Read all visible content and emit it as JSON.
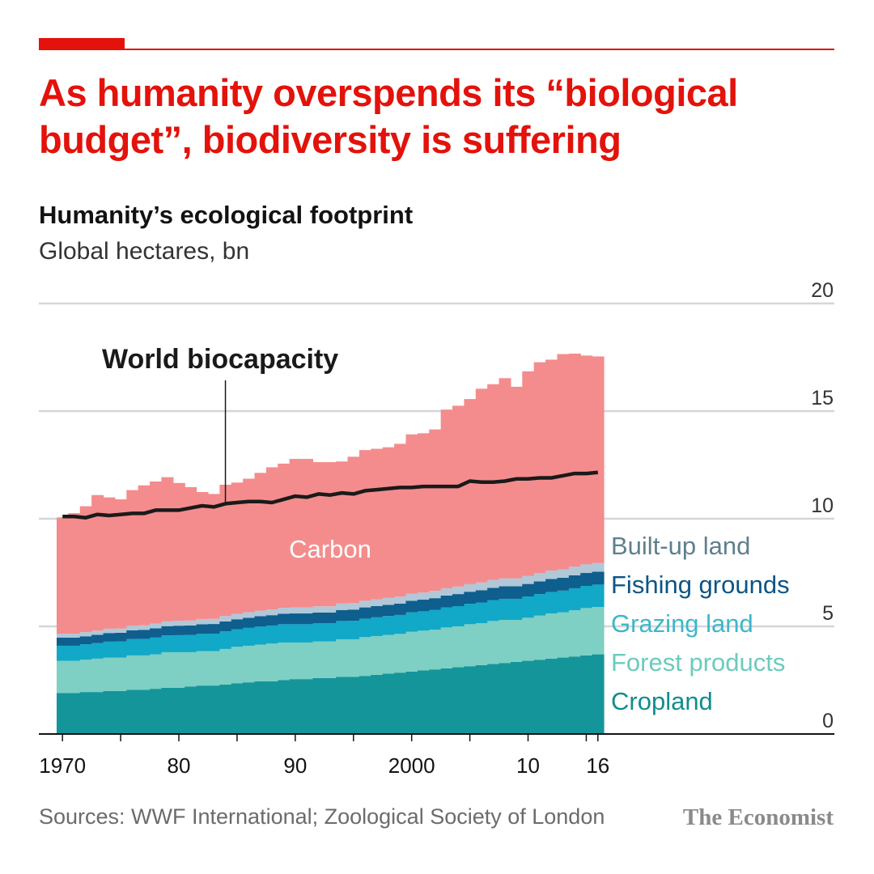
{
  "headline": {
    "line1": "As humanity overspends its “biological",
    "line2": "budget”, biodiversity is suffering"
  },
  "source": "Sources: WWF International; Zoological Society of London",
  "brand": "The Economist",
  "colors": {
    "accent": "#e3120b",
    "cropland": "#14959a",
    "forest": "#7ecfc4",
    "grazing": "#12a8c7",
    "fishing": "#0e5e8e",
    "builtup": "#b0c8d8",
    "carbon": "#f48c8d",
    "biocapacity": "#1a1a1a"
  },
  "chart_data": {
    "type": "area",
    "stacked": true,
    "title": "Humanity’s ecological footprint",
    "subtitle": "Global hectares, bn",
    "ylim": [
      0,
      20
    ],
    "yticks": [
      0,
      5,
      10,
      15,
      20
    ],
    "xlim": [
      1970,
      2016
    ],
    "xticks": [
      {
        "value": 1970,
        "label": "1970"
      },
      {
        "value": 1980,
        "label": "80"
      },
      {
        "value": 1990,
        "label": "90"
      },
      {
        "value": 2000,
        "label": "2000"
      },
      {
        "value": 2010,
        "label": "10"
      },
      {
        "value": 2016,
        "label": "16"
      }
    ],
    "x": [
      1970,
      1971,
      1972,
      1973,
      1974,
      1975,
      1976,
      1977,
      1978,
      1979,
      1980,
      1981,
      1982,
      1983,
      1984,
      1985,
      1986,
      1987,
      1988,
      1989,
      1990,
      1991,
      1992,
      1993,
      1994,
      1995,
      1996,
      1997,
      1998,
      1999,
      2000,
      2001,
      2002,
      2003,
      2004,
      2005,
      2006,
      2007,
      2008,
      2009,
      2010,
      2011,
      2012,
      2013,
      2014,
      2015,
      2016
    ],
    "series": [
      {
        "name": "Cropland",
        "key": "cropland",
        "values": [
          1.9,
          1.9,
          1.95,
          1.95,
          2.0,
          2.0,
          2.05,
          2.05,
          2.1,
          2.15,
          2.15,
          2.2,
          2.25,
          2.25,
          2.3,
          2.35,
          2.4,
          2.45,
          2.45,
          2.5,
          2.55,
          2.55,
          2.6,
          2.6,
          2.65,
          2.65,
          2.7,
          2.75,
          2.8,
          2.85,
          2.9,
          2.95,
          3.0,
          3.05,
          3.1,
          3.15,
          3.2,
          3.25,
          3.3,
          3.35,
          3.4,
          3.45,
          3.5,
          3.55,
          3.6,
          3.65,
          3.7
        ]
      },
      {
        "name": "Forest products",
        "key": "forest",
        "values": [
          1.5,
          1.5,
          1.5,
          1.55,
          1.55,
          1.55,
          1.6,
          1.6,
          1.6,
          1.65,
          1.65,
          1.6,
          1.6,
          1.6,
          1.65,
          1.7,
          1.7,
          1.7,
          1.75,
          1.75,
          1.7,
          1.7,
          1.7,
          1.7,
          1.75,
          1.75,
          1.8,
          1.8,
          1.8,
          1.8,
          1.85,
          1.85,
          1.85,
          1.9,
          1.9,
          1.95,
          1.95,
          2.0,
          2.0,
          1.95,
          2.0,
          2.05,
          2.1,
          2.1,
          2.15,
          2.2,
          2.2
        ]
      },
      {
        "name": "Grazing land",
        "key": "grazing",
        "values": [
          0.7,
          0.7,
          0.72,
          0.72,
          0.74,
          0.75,
          0.76,
          0.77,
          0.78,
          0.78,
          0.79,
          0.8,
          0.8,
          0.81,
          0.82,
          0.82,
          0.83,
          0.84,
          0.84,
          0.85,
          0.85,
          0.85,
          0.84,
          0.84,
          0.85,
          0.86,
          0.86,
          0.87,
          0.88,
          0.88,
          0.9,
          0.9,
          0.92,
          0.93,
          0.94,
          0.95,
          0.96,
          0.97,
          0.98,
          0.98,
          0.99,
          1.0,
          1.0,
          1.01,
          1.02,
          1.03,
          1.04
        ]
      },
      {
        "name": "Fishing grounds",
        "key": "fishing",
        "values": [
          0.38,
          0.38,
          0.37,
          0.39,
          0.4,
          0.4,
          0.41,
          0.42,
          0.43,
          0.43,
          0.44,
          0.44,
          0.45,
          0.45,
          0.46,
          0.46,
          0.47,
          0.48,
          0.48,
          0.49,
          0.5,
          0.5,
          0.5,
          0.5,
          0.51,
          0.52,
          0.52,
          0.52,
          0.52,
          0.53,
          0.54,
          0.54,
          0.54,
          0.55,
          0.56,
          0.56,
          0.57,
          0.57,
          0.58,
          0.58,
          0.58,
          0.59,
          0.6,
          0.6,
          0.6,
          0.6,
          0.6
        ]
      },
      {
        "name": "Built-up land",
        "key": "builtup",
        "values": [
          0.18,
          0.18,
          0.19,
          0.19,
          0.2,
          0.2,
          0.21,
          0.21,
          0.22,
          0.22,
          0.23,
          0.23,
          0.24,
          0.24,
          0.25,
          0.25,
          0.26,
          0.26,
          0.27,
          0.27,
          0.28,
          0.28,
          0.29,
          0.29,
          0.3,
          0.3,
          0.31,
          0.31,
          0.32,
          0.32,
          0.33,
          0.33,
          0.34,
          0.34,
          0.35,
          0.35,
          0.36,
          0.36,
          0.37,
          0.37,
          0.38,
          0.38,
          0.39,
          0.39,
          0.4,
          0.4,
          0.4
        ]
      },
      {
        "name": "Carbon",
        "key": "carbon",
        "values": [
          5.4,
          5.6,
          5.85,
          6.3,
          6.1,
          6.0,
          6.3,
          6.5,
          6.6,
          6.7,
          6.4,
          6.2,
          5.9,
          5.8,
          6.1,
          6.1,
          6.2,
          6.4,
          6.6,
          6.7,
          6.9,
          6.9,
          6.7,
          6.7,
          6.6,
          6.8,
          7.0,
          7.0,
          7.0,
          7.1,
          7.4,
          7.4,
          7.5,
          8.3,
          8.4,
          8.6,
          9.0,
          9.1,
          9.3,
          8.9,
          9.5,
          9.8,
          9.8,
          10.0,
          9.9,
          9.7,
          9.6
        ]
      }
    ],
    "biocapacity": {
      "label": "World biocapacity",
      "values": [
        10.1,
        10.1,
        10.05,
        10.2,
        10.15,
        10.2,
        10.25,
        10.25,
        10.4,
        10.4,
        10.4,
        10.5,
        10.6,
        10.55,
        10.7,
        10.75,
        10.8,
        10.8,
        10.75,
        10.9,
        11.05,
        11.0,
        11.15,
        11.1,
        11.2,
        11.15,
        11.3,
        11.35,
        11.4,
        11.45,
        11.45,
        11.5,
        11.5,
        11.5,
        11.5,
        11.75,
        11.7,
        11.7,
        11.75,
        11.85,
        11.85,
        11.9,
        11.9,
        12.0,
        12.1,
        12.1,
        12.15
      ]
    },
    "annotations": [
      {
        "text": "Carbon",
        "series": "carbon"
      },
      {
        "text": "World biocapacity",
        "series": "biocapacity"
      }
    ],
    "legend": {
      "placement": "right-inline",
      "items": [
        {
          "text": "Built-up land",
          "color": "#5f7f8d"
        },
        {
          "text": "Fishing grounds",
          "color": "#0c5585"
        },
        {
          "text": "Grazing land",
          "color": "#3cb7c9"
        },
        {
          "text": "Forest products",
          "color": "#6ccbbd"
        },
        {
          "text": "Cropland",
          "color": "#128c8e"
        }
      ]
    }
  }
}
